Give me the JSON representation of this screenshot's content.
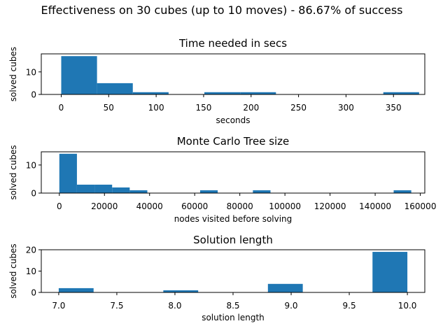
{
  "suptitle": "Effectiveness on 30 cubes (up to 10 moves) - 86.67% of success",
  "bar_color": "#1f77b4",
  "chart_data": [
    {
      "type": "histogram",
      "title": "Time needed in secs",
      "xlabel": "seconds",
      "ylabel": "solved cubes",
      "xlim": [
        -21,
        383
      ],
      "ylim": [
        0,
        18
      ],
      "xticks": [
        0,
        50,
        100,
        150,
        200,
        250,
        300,
        350
      ],
      "yticks": [
        0,
        10
      ],
      "bin_edges": [
        0,
        37.7,
        75.4,
        113.1,
        150.8,
        188.5,
        226.2,
        263.9,
        301.6,
        339.3,
        377
      ],
      "counts": [
        17,
        5,
        1,
        0,
        1,
        1,
        0,
        0,
        0,
        1
      ]
    },
    {
      "type": "histogram",
      "title": "Monte Carlo Tree size",
      "xlabel": "nodes visited before solving",
      "ylabel": "solved cubes",
      "xlim": [
        -8000,
        162000
      ],
      "ylim": [
        0,
        14.7
      ],
      "xticks": [
        0,
        20000,
        40000,
        60000,
        80000,
        100000,
        120000,
        140000,
        160000
      ],
      "yticks": [
        0,
        10
      ],
      "bin_edges": [
        0,
        7800,
        15600,
        23400,
        31200,
        39000,
        46800,
        54600,
        62400,
        70200,
        78000,
        85800,
        93600,
        101400,
        109200,
        117000,
        124800,
        132600,
        140400,
        148200,
        156000
      ],
      "counts": [
        14,
        3,
        3,
        2,
        1,
        0,
        0,
        0,
        1,
        0,
        0,
        1,
        0,
        0,
        0,
        0,
        0,
        0,
        0,
        1
      ]
    },
    {
      "type": "histogram",
      "title": "Solution length",
      "xlabel": "solution length",
      "ylabel": "solved cubes",
      "xlim": [
        6.85,
        10.15
      ],
      "ylim": [
        0,
        20
      ],
      "xticks": [
        "7.0",
        "7.5",
        "8.0",
        "8.5",
        "9.0",
        "9.5",
        "10.0"
      ],
      "yticks": [
        0,
        10,
        20
      ],
      "bin_edges": [
        7.0,
        7.3,
        7.6,
        7.9,
        8.2,
        8.5,
        8.8,
        9.1,
        9.4,
        9.7,
        10.0
      ],
      "counts": [
        2,
        0,
        0,
        1,
        0,
        0,
        4,
        0,
        0,
        19
      ]
    }
  ]
}
